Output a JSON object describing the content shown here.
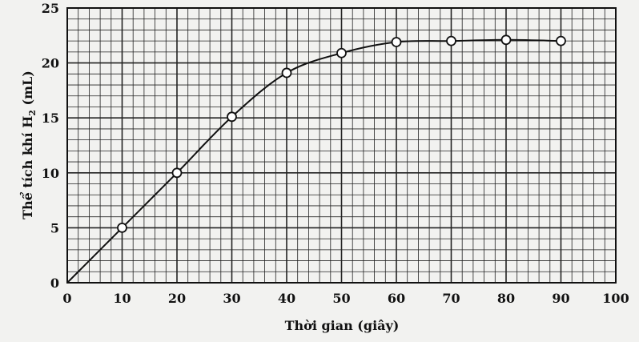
{
  "chart_data": {
    "type": "line",
    "xlabel": "Thời gian (giây)",
    "ylabel": "Thể tích khí H",
    "ylabel_sub": "2",
    "ylabel_unit": " (mL)",
    "xlim": [
      0,
      100
    ],
    "ylim": [
      0,
      25
    ],
    "x_ticks": [
      0,
      10,
      20,
      30,
      40,
      50,
      60,
      70,
      80,
      90,
      100
    ],
    "y_ticks": [
      0,
      5,
      10,
      15,
      20,
      25
    ],
    "grid": true,
    "series": [
      {
        "x": [
          0,
          10,
          20,
          30,
          40,
          50,
          60,
          70,
          80,
          90
        ],
        "y": [
          0,
          5,
          10,
          15.1,
          19.1,
          20.9,
          21.9,
          22.0,
          22.1,
          22.0
        ],
        "markers": [
          false,
          true,
          true,
          true,
          true,
          true,
          true,
          true,
          true,
          true
        ]
      }
    ],
    "colors": {
      "line": "#111111",
      "grid": "#222222",
      "background": "#f2f2f0"
    }
  }
}
